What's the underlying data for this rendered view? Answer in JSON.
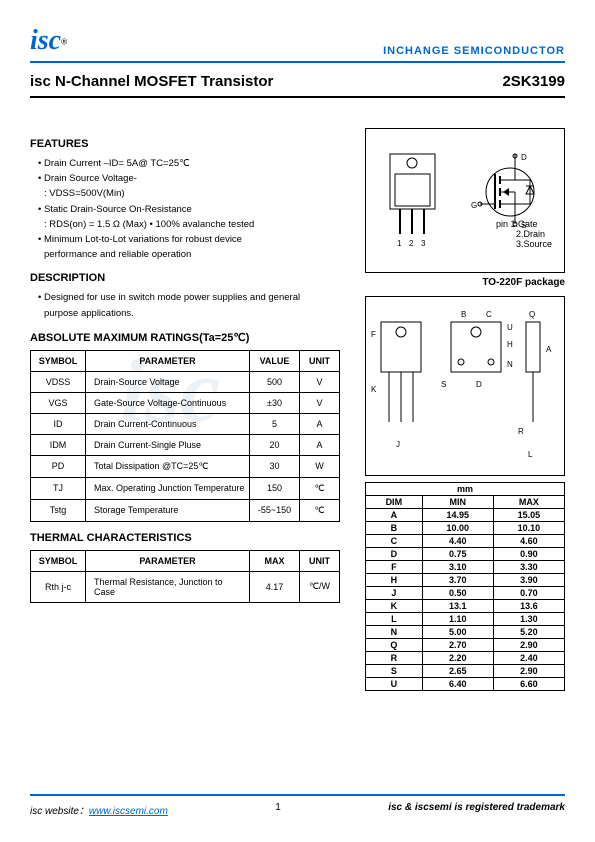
{
  "header": {
    "logo": "isc",
    "reg": "®",
    "company": "INCHANGE SEMICONDUCTOR"
  },
  "title": "isc N-Channel MOSFET Transistor",
  "part": "2SK3199",
  "features": {
    "heading": "FEATURES",
    "items": [
      "Drain Current –ID= 5A@ TC=25℃",
      "Drain Source Voltage-",
      ": VDSS=500V(Min)",
      "Static Drain-Source On-Resistance",
      ": RDS(on) = 1.5 Ω (Max)      • 100% avalanche tested",
      "Minimum Lot-to-Lot variations for robust device",
      "performance and reliable operation"
    ]
  },
  "description": {
    "heading": "DESCRIPTION",
    "items": [
      "Designed for use in switch mode power supplies and general",
      "purpose applications."
    ]
  },
  "ratings": {
    "heading": "ABSOLUTE MAXIMUM RATINGS(Ta=25℃)",
    "cols": [
      "SYMBOL",
      "PARAMETER",
      "VALUE",
      "UNIT"
    ],
    "rows": [
      [
        "VDSS",
        "Drain-Source Voltage",
        "500",
        "V"
      ],
      [
        "VGS",
        "Gate-Source Voltage-Continuous",
        "±30",
        "V"
      ],
      [
        "ID",
        "Drain Current-Continuous",
        "5",
        "A"
      ],
      [
        "IDM",
        "Drain Current-Single Pluse",
        "20",
        "A"
      ],
      [
        "PD",
        "Total Dissipation @TC=25℃",
        "30",
        "W"
      ],
      [
        "TJ",
        "Max. Operating Junction Temperature",
        "150",
        "℃"
      ],
      [
        "Tstg",
        "Storage Temperature",
        "-55~150",
        "℃"
      ]
    ]
  },
  "thermal": {
    "heading": "THERMAL CHARACTERISTICS",
    "cols": [
      "SYMBOL",
      "PARAMETER",
      "MAX",
      "UNIT"
    ],
    "rows": [
      [
        "Rth j-c",
        "Thermal Resistance, Junction to Case",
        "4.17",
        "℃/W"
      ]
    ]
  },
  "package": {
    "pins": "1  2  3",
    "pin1": "pin 1.Gate",
    "pin2": "2.Drain",
    "pin3": "3.Source",
    "label": "TO-220F package"
  },
  "dimensions": {
    "header": "mm",
    "cols": [
      "DIM",
      "MIN",
      "MAX"
    ],
    "rows": [
      [
        "A",
        "14.95",
        "15.05"
      ],
      [
        "B",
        "10.00",
        "10.10"
      ],
      [
        "C",
        "4.40",
        "4.60"
      ],
      [
        "D",
        "0.75",
        "0.90"
      ],
      [
        "F",
        "3.10",
        "3.30"
      ],
      [
        "H",
        "3.70",
        "3.90"
      ],
      [
        "J",
        "0.50",
        "0.70"
      ],
      [
        "K",
        "13.1",
        "13.6"
      ],
      [
        "L",
        "1.10",
        "1.30"
      ],
      [
        "N",
        "5.00",
        "5.20"
      ],
      [
        "Q",
        "2.70",
        "2.90"
      ],
      [
        "R",
        "2.20",
        "2.40"
      ],
      [
        "S",
        "2.65",
        "2.90"
      ],
      [
        "U",
        "6.40",
        "6.60"
      ]
    ]
  },
  "footer": {
    "site_label": "isc website：",
    "site_url": "www.iscsemi.com",
    "page": "1",
    "trademark": "isc & iscsemi is registered trademark"
  }
}
